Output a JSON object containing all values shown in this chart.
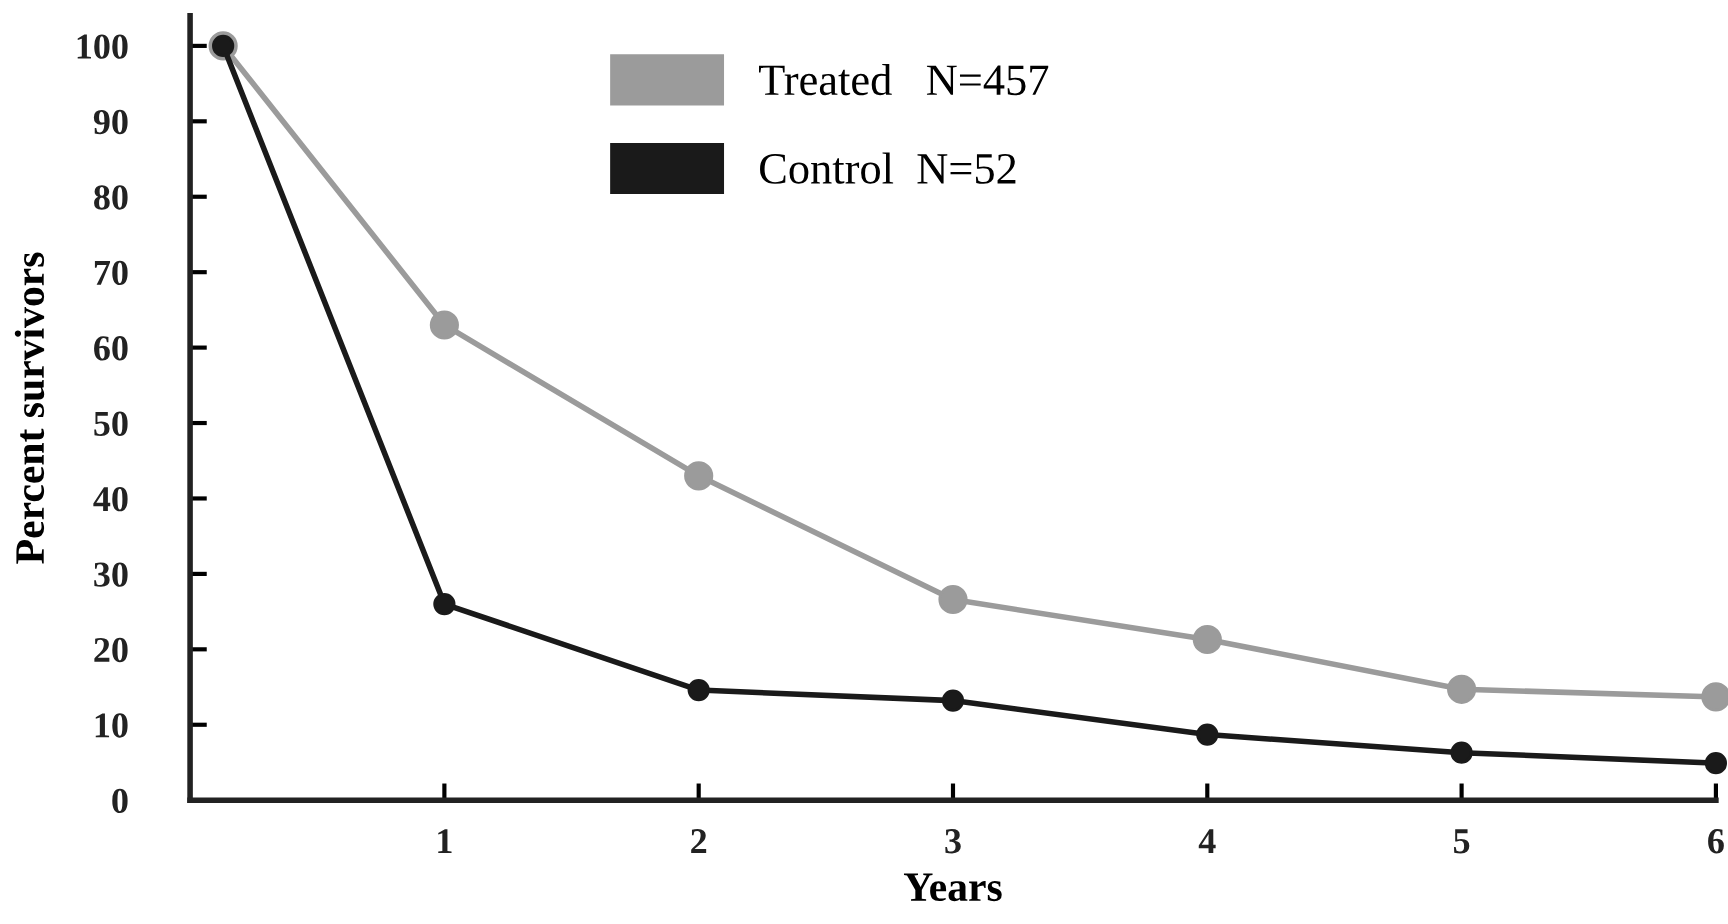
{
  "chart_data": {
    "type": "line",
    "xlabel": "Years",
    "ylabel": "Percent survivors",
    "x": [
      0.13,
      1,
      2,
      3,
      4,
      5,
      6
    ],
    "series": [
      {
        "name": "Treated   N=457",
        "color": "#9b9b9b",
        "values": [
          100,
          63,
          43,
          26.6,
          21.3,
          14.7,
          13.7
        ]
      },
      {
        "name": "Control  N=52",
        "color": "#1a1a1a",
        "values": [
          100,
          26,
          14.6,
          13.2,
          8.7,
          6.3,
          4.9
        ]
      }
    ],
    "xlim": [
      0,
      6
    ],
    "xticks": [
      1,
      2,
      3,
      4,
      5,
      6
    ],
    "ylim": [
      0,
      104
    ],
    "yticks": [
      0,
      10,
      20,
      30,
      40,
      50,
      60,
      70,
      80,
      90,
      100
    ],
    "marker": "circle",
    "line_style": "solid",
    "grid": false,
    "legend": "top"
  }
}
